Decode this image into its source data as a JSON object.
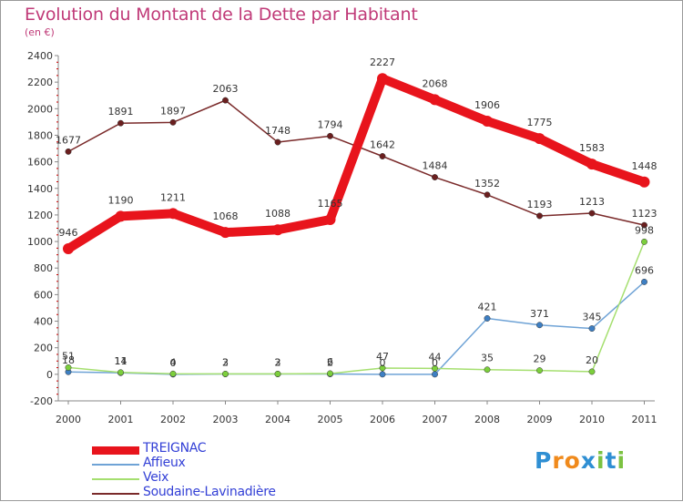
{
  "title": "Evolution du Montant de la Dette par Habitant",
  "subtitle": "(en €)",
  "logo": {
    "text": "Proxiti",
    "letters": [
      "P",
      "r",
      "o",
      "x",
      "i",
      "t",
      "i"
    ],
    "colors": [
      "#2f8fd3",
      "#f08a1c",
      "#f08a1c",
      "#2f8fd3",
      "#7cc242",
      "#2f8fd3",
      "#7cc242"
    ]
  },
  "chart_data": {
    "type": "line",
    "title": "Evolution du Montant de la Dette par Habitant",
    "subtitle": "(en €)",
    "x": [
      "2000",
      "2001",
      "2002",
      "2003",
      "2004",
      "2005",
      "2006",
      "2007",
      "2008",
      "2009",
      "2010",
      "2011"
    ],
    "ylim": [
      -200,
      2400
    ],
    "yticks": [
      "-200",
      "0",
      "200",
      "400",
      "600",
      "800",
      "1000",
      "1200",
      "1400",
      "1600",
      "1800",
      "2000",
      "2200",
      "2400"
    ],
    "grid": false,
    "legend_position": "bottom-left",
    "series": [
      {
        "name": "TREIGNAC",
        "color": "#e8141c",
        "point_color": "#e8141c",
        "values": [
          946,
          1190,
          1211,
          1068,
          1088,
          1165,
          2227,
          2068,
          1906,
          1775,
          1583,
          1448
        ],
        "labels": [
          "946",
          "1190",
          "1211",
          "1068",
          "1088",
          "1165",
          "2227",
          "2068",
          "1906",
          "1775",
          "1583",
          "1448"
        ]
      },
      {
        "name": "Affieux",
        "color": "#6fa3d6",
        "point_color": "#3e7fc3",
        "values": [
          18,
          11,
          0,
          2,
          2,
          2,
          0,
          0,
          421,
          371,
          345,
          696
        ],
        "labels": [
          "18",
          "11",
          "0",
          "2",
          "2",
          "2",
          "0",
          "0",
          "421",
          "371",
          "345",
          "696"
        ]
      },
      {
        "name": "Veix",
        "color": "#a5df6f",
        "point_color": "#7ccf3c",
        "values": [
          51,
          14,
          4,
          3,
          3,
          6,
          47,
          44,
          35,
          29,
          20,
          998
        ],
        "labels": [
          "51",
          "14",
          "4",
          "3",
          "3",
          "6",
          "47",
          "44",
          "35",
          "29",
          "20",
          "998"
        ]
      },
      {
        "name": "Soudaine-Lavinadière",
        "color": "#7a2a2a",
        "point_color": "#6b1f1f",
        "values": [
          1677,
          1891,
          1897,
          2063,
          1748,
          1794,
          1642,
          1484,
          1352,
          1193,
          1213,
          1123
        ],
        "labels": [
          "1677",
          "1891",
          "1897",
          "2063",
          "1748",
          "1794",
          "1642",
          "1484",
          "1352",
          "1193",
          "1213",
          "1123"
        ]
      }
    ]
  }
}
